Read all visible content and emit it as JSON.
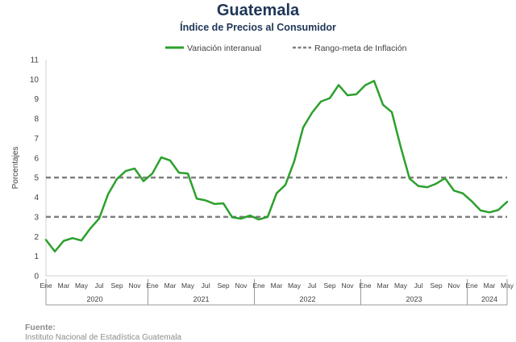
{
  "chart_data": {
    "type": "line",
    "title": "Guatemala",
    "subtitle": "Índice de Precios al Consumidor",
    "ylabel": "Porcentajes",
    "xlabel": "",
    "ylim": [
      0,
      11
    ],
    "yticks": [
      "0",
      "1",
      "2",
      "3",
      "4",
      "5",
      "6",
      "7",
      "8",
      "9",
      "10",
      "11"
    ],
    "grid": false,
    "legend_position": "top",
    "month_labels": [
      "Ene",
      "Mar",
      "May",
      "Jul",
      "Sep",
      "Nov",
      "Ene",
      "Mar",
      "May",
      "Jul",
      "Sep",
      "Nov",
      "Ene",
      "Mar",
      "May",
      "Jul",
      "Sep",
      "Nov",
      "Ene",
      "Mar",
      "May",
      "Jul",
      "Sep",
      "Nov",
      "Ene",
      "Mar",
      "May"
    ],
    "years": [
      {
        "label": "2020",
        "months": 12
      },
      {
        "label": "2021",
        "months": 12
      },
      {
        "label": "2022",
        "months": 12
      },
      {
        "label": "2023",
        "months": 12
      },
      {
        "label": "2024",
        "months": 5
      }
    ],
    "x": [
      "2020-01",
      "2020-02",
      "2020-03",
      "2020-04",
      "2020-05",
      "2020-06",
      "2020-07",
      "2020-08",
      "2020-09",
      "2020-10",
      "2020-11",
      "2020-12",
      "2021-01",
      "2021-02",
      "2021-03",
      "2021-04",
      "2021-05",
      "2021-06",
      "2021-07",
      "2021-08",
      "2021-09",
      "2021-10",
      "2021-11",
      "2021-12",
      "2022-01",
      "2022-02",
      "2022-03",
      "2022-04",
      "2022-05",
      "2022-06",
      "2022-07",
      "2022-08",
      "2022-09",
      "2022-10",
      "2022-11",
      "2022-12",
      "2023-01",
      "2023-02",
      "2023-03",
      "2023-04",
      "2023-05",
      "2023-06",
      "2023-07",
      "2023-08",
      "2023-09",
      "2023-10",
      "2023-11",
      "2023-12",
      "2024-01",
      "2024-02",
      "2024-03",
      "2024-04",
      "2024-05"
    ],
    "series": [
      {
        "name": "Variación interanual",
        "color": "#2ca02c",
        "style": "solid",
        "values": [
          1.83,
          1.24,
          1.78,
          1.92,
          1.8,
          2.41,
          2.92,
          4.15,
          4.93,
          5.34,
          5.46,
          4.82,
          5.21,
          6.03,
          5.87,
          5.25,
          5.21,
          3.93,
          3.84,
          3.66,
          3.69,
          2.98,
          2.91,
          3.07,
          2.87,
          3.0,
          4.2,
          4.63,
          5.84,
          7.55,
          8.3,
          8.87,
          9.04,
          9.71,
          9.19,
          9.24,
          9.7,
          9.92,
          8.71,
          8.33,
          6.56,
          4.95,
          4.57,
          4.51,
          4.69,
          4.97,
          4.34,
          4.2,
          3.8,
          3.33,
          3.23,
          3.35,
          3.77
        ]
      }
    ],
    "reference_band": {
      "name": "Rango-meta de Inflación",
      "color": "#7f7f7f",
      "style": "dashed",
      "values": [
        3,
        5
      ]
    }
  },
  "footer": {
    "source_label": "Fuente:",
    "source_text": "Instituto Nacional de Estadística Guatemala"
  }
}
